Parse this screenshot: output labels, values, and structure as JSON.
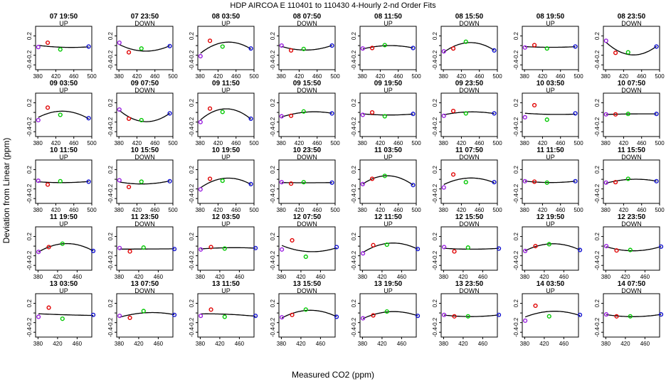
{
  "figure": {
    "title": "HDP    AIRCOA E    110401 to 110430    4-Hourly 2-nd Order Fits",
    "xlabel": "Measured CO2 (ppm)",
    "ylabel": "Deviation from Linear (ppm)"
  },
  "colors": {
    "background": "#ffffff",
    "curve": "#000000",
    "point_1": "#9a20e0",
    "point_2": "#e00000",
    "point_3": "#00c800",
    "point_4": "#1010d0"
  },
  "chart_data": {
    "type": "scatter",
    "panel_layout": {
      "rows": 5,
      "cols": 8
    },
    "ylim": [
      -0.5,
      0.4
    ],
    "yticks": [
      -0.4,
      -0.2,
      0.0,
      0.2
    ],
    "yticklabels": [
      "-0.4",
      "-0.2",
      "",
      "0.2"
    ],
    "row_xaxis": [
      {
        "xlim": [
          375,
          500
        ],
        "xticks": [
          380,
          420,
          460,
          500
        ],
        "xticklabels": [
          "380",
          "420",
          "460",
          "500"
        ]
      },
      {
        "xlim": [
          375,
          500
        ],
        "xticks": [
          380,
          420,
          460,
          500
        ],
        "xticklabels": [
          "380",
          "420",
          "460",
          "500"
        ]
      },
      {
        "xlim": [
          375,
          500
        ],
        "xticks": [
          380,
          420,
          460,
          500
        ],
        "xticklabels": [
          "380",
          "420",
          "460",
          "500"
        ]
      },
      {
        "xlim": [
          375,
          490
        ],
        "xticks": [
          380,
          420,
          460
        ],
        "xticklabels": [
          "380",
          "420",
          "460"
        ]
      },
      {
        "xlim": [
          375,
          490
        ],
        "xticks": [
          380,
          420,
          460
        ],
        "xticklabels": [
          "380",
          "420",
          "460"
        ]
      }
    ],
    "standard_x": [
      381,
      402,
      430,
      493
    ],
    "fit_type": "2nd-order polynomial",
    "panels": [
      {
        "title": "07 19:50",
        "dir": "UP",
        "y": [
          -0.03,
          0.06,
          -0.08,
          -0.02
        ]
      },
      {
        "title": "07 23:50",
        "dir": "DOWN",
        "y": [
          0.06,
          -0.14,
          -0.06,
          -0.01
        ]
      },
      {
        "title": "08 03:50",
        "dir": "UP",
        "y": [
          -0.22,
          0.1,
          -0.02,
          -0.06
        ]
      },
      {
        "title": "08 07:50",
        "dir": "DOWN",
        "y": [
          0.0,
          -0.1,
          -0.07,
          0.0
        ]
      },
      {
        "title": "08 11:50",
        "dir": "UP",
        "y": [
          -0.06,
          -0.05,
          0.01,
          -0.05
        ]
      },
      {
        "title": "08 15:50",
        "dir": "DOWN",
        "y": [
          -0.12,
          -0.06,
          0.08,
          -0.1
        ]
      },
      {
        "title": "08 19:50",
        "dir": "UP",
        "y": [
          -0.04,
          0.01,
          -0.06,
          -0.02
        ]
      },
      {
        "title": "08 23:50",
        "dir": "DOWN",
        "y": [
          0.1,
          -0.15,
          -0.14,
          -0.02
        ]
      },
      {
        "title": "09 03:50",
        "dir": "UP",
        "y": [
          -0.16,
          0.1,
          -0.05,
          -0.12
        ]
      },
      {
        "title": "09 07:50",
        "dir": "DOWN",
        "y": [
          0.06,
          -0.13,
          -0.16,
          -0.02
        ]
      },
      {
        "title": "09 11:50",
        "dir": "UP",
        "y": [
          -0.2,
          0.08,
          0.01,
          -0.13
        ]
      },
      {
        "title": "09 15:50",
        "dir": "DOWN",
        "y": [
          -0.08,
          -0.07,
          0.02,
          -0.02
        ]
      },
      {
        "title": "09 19:50",
        "dir": "UP",
        "y": [
          -0.05,
          0.0,
          -0.08,
          -0.03
        ]
      },
      {
        "title": "09 23:50",
        "dir": "DOWN",
        "y": [
          -0.07,
          0.03,
          -0.02,
          -0.02
        ]
      },
      {
        "title": "10 03:50",
        "dir": "UP",
        "y": [
          -0.1,
          0.15,
          -0.15,
          -0.02
        ]
      },
      {
        "title": "10 07:50",
        "dir": "DOWN",
        "y": [
          -0.04,
          -0.04,
          -0.03,
          -0.03
        ]
      },
      {
        "title": "10 11:50",
        "dir": "UP",
        "y": [
          -0.03,
          -0.11,
          -0.04,
          -0.05
        ]
      },
      {
        "title": "10 15:50",
        "dir": "DOWN",
        "y": [
          -0.02,
          -0.16,
          -0.05,
          -0.04
        ]
      },
      {
        "title": "10 19:50",
        "dir": "UP",
        "y": [
          -0.21,
          0.01,
          -0.03,
          -0.1
        ]
      },
      {
        "title": "10 23:50",
        "dir": "DOWN",
        "y": [
          -0.06,
          -0.09,
          -0.06,
          -0.07
        ]
      },
      {
        "title": "11 03:50",
        "dir": "UP",
        "y": [
          -0.1,
          0.01,
          0.07,
          -0.12
        ]
      },
      {
        "title": "11 07:50",
        "dir": "DOWN",
        "y": [
          -0.17,
          0.1,
          -0.06,
          -0.06
        ]
      },
      {
        "title": "11 11:50",
        "dir": "UP",
        "y": [
          -0.04,
          -0.05,
          -0.07,
          -0.04
        ]
      },
      {
        "title": "11 15:50",
        "dir": "DOWN",
        "y": [
          -0.07,
          -0.06,
          0.01,
          -0.04
        ]
      },
      {
        "title": "11 19:50",
        "dir": "UP",
        "y": [
          -0.12,
          -0.02,
          0.05,
          -0.1
        ]
      },
      {
        "title": "11 23:50",
        "dir": "DOWN",
        "y": [
          -0.04,
          -0.11,
          -0.03,
          -0.06
        ]
      },
      {
        "title": "12 03:50",
        "dir": "UP",
        "y": [
          -0.07,
          -0.02,
          -0.05,
          -0.04
        ]
      },
      {
        "title": "12 07:50",
        "dir": "DOWN",
        "y": [
          -0.07,
          0.12,
          -0.22,
          -0.02
        ]
      },
      {
        "title": "12 11:50",
        "dir": "UP",
        "y": [
          -0.15,
          0.02,
          0.03,
          -0.06
        ]
      },
      {
        "title": "12 15:50",
        "dir": "DOWN",
        "y": [
          -0.02,
          -0.11,
          -0.03,
          -0.05
        ]
      },
      {
        "title": "12 19:50",
        "dir": "UP",
        "y": [
          -0.1,
          0.0,
          0.04,
          -0.08
        ]
      },
      {
        "title": "12 23:50",
        "dir": "DOWN",
        "y": [
          0.0,
          -0.09,
          -0.08,
          -0.01
        ]
      },
      {
        "title": "13 03:50",
        "dir": "UP",
        "y": [
          -0.08,
          0.11,
          -0.12,
          -0.04
        ]
      },
      {
        "title": "13 07:50",
        "dir": "DOWN",
        "y": [
          -0.06,
          -0.1,
          0.04,
          -0.04
        ]
      },
      {
        "title": "13 11:50",
        "dir": "UP",
        "y": [
          -0.06,
          0.07,
          -0.08,
          -0.06
        ]
      },
      {
        "title": "13 15:50",
        "dir": "DOWN",
        "y": [
          -0.09,
          -0.04,
          0.07,
          -0.08
        ]
      },
      {
        "title": "13 19:50",
        "dir": "UP",
        "y": [
          -0.11,
          -0.05,
          0.03,
          -0.06
        ]
      },
      {
        "title": "13 23:50",
        "dir": "DOWN",
        "y": [
          -0.04,
          -0.07,
          -0.07,
          -0.04
        ]
      },
      {
        "title": "14 03:50",
        "dir": "UP",
        "y": [
          -0.16,
          0.15,
          -0.07,
          -0.04
        ]
      },
      {
        "title": "14 07:50",
        "dir": "DOWN",
        "y": [
          -0.03,
          -0.07,
          -0.07,
          -0.03
        ]
      }
    ]
  }
}
